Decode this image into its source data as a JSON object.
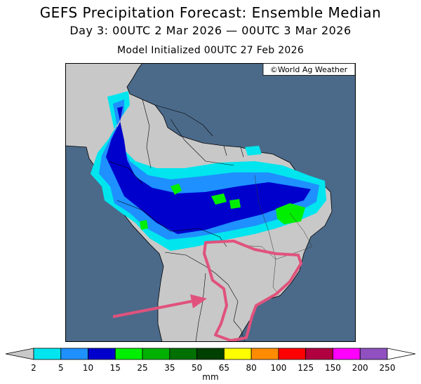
{
  "header": {
    "title": "GEFS Precipitation Forecast: Ensemble Median",
    "valid_period": "Day 3: 00UTC 2 Mar 2026 — 00UTC 3 Mar 2026",
    "init_time": "Model Initialized 00UTC 27 Feb 2026"
  },
  "map": {
    "credit": "©World Ag Weather",
    "ocean_color": "#4b6a8a",
    "land_color": "#c8c8c8"
  },
  "legend": {
    "unit": "mm",
    "labels": [
      "2",
      "5",
      "10",
      "15",
      "25",
      "35",
      "50",
      "65",
      "80",
      "100",
      "125",
      "150",
      "200",
      "250"
    ],
    "colors": [
      "#00e5ee",
      "#1e90ff",
      "#0000cd",
      "#00ee00",
      "#00b000",
      "#007000",
      "#004000",
      "#ffff00",
      "#ff8c00",
      "#ff0000",
      "#b00040",
      "#ff00ff",
      "#9050c0"
    ],
    "below_color": "#c8c8c8",
    "above_color": "#ffffff"
  },
  "annotation": {
    "outline_color": "#e0527c",
    "arrow_color": "#e0527c"
  }
}
